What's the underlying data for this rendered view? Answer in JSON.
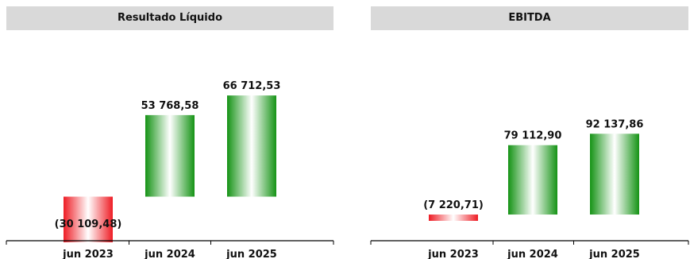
{
  "chart_data": [
    {
      "type": "bar",
      "title": "Resultado Líquido",
      "categories": [
        "jun 2023",
        "jun 2024",
        "jun 2025"
      ],
      "values": [
        -30109.48,
        53768.58,
        66712.53
      ],
      "labels": [
        "(30 109,48)",
        "53 768,58",
        "66 712,53"
      ],
      "style": "waterfall",
      "grid": false
    },
    {
      "type": "bar",
      "title": "EBITDA",
      "categories": [
        "jun 2023",
        "jun 2024",
        "jun 2025"
      ],
      "values": [
        -7220.71,
        79112.9,
        92137.86
      ],
      "labels": [
        "(7 220,71)",
        "79 112,90",
        "92 137,86"
      ],
      "style": "waterfall",
      "grid": false
    }
  ],
  "colors": {
    "positive": "#159315",
    "negative": "#ee1c24",
    "header_bg": "#d9d9d9"
  }
}
